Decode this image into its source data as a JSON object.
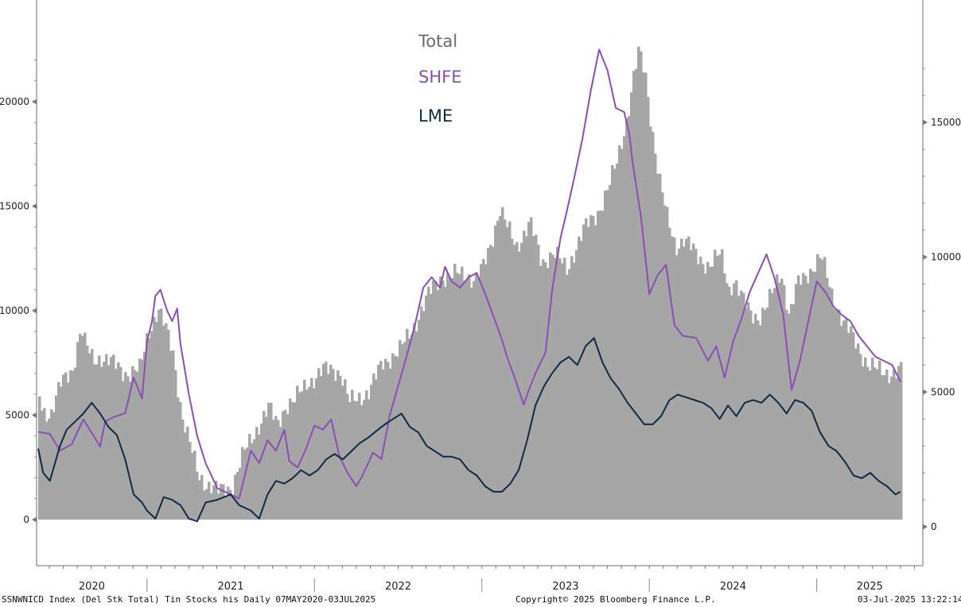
{
  "chart_data": {
    "type": "area",
    "left_axis": {
      "ticks": [
        0,
        5000,
        10000,
        15000,
        20000
      ],
      "ylim": [
        0,
        23000
      ]
    },
    "right_axis": {
      "ticks": [
        0,
        5000,
        10000,
        15000
      ],
      "ylim": [
        0,
        18000
      ]
    },
    "x_categories": [
      "2020",
      "2021",
      "2022",
      "2023",
      "2024",
      "2025"
    ],
    "x_range": [
      2020.35,
      2025.51
    ],
    "legend": [
      "Total",
      "SHFE",
      "LME"
    ],
    "colors": {
      "Total": "#a6a6a6",
      "SHFE": "#8a4fb5",
      "LME": "#0f2a45",
      "legend_total": "#6b6b6b"
    },
    "series": [
      {
        "name": "Total",
        "axis": "right",
        "style": "bars",
        "x": [
          2020.35,
          2020.37,
          2020.42,
          2020.48,
          2020.55,
          2020.6,
          2020.62,
          2020.67,
          2020.72,
          2020.8,
          2020.87,
          2020.95,
          2021.0,
          2021.06,
          2021.1,
          2021.15,
          2021.2,
          2021.25,
          2021.3,
          2021.35,
          2021.42,
          2021.5,
          2021.57,
          2021.62,
          2021.67,
          2021.72,
          2021.77,
          2021.82,
          2021.87,
          2021.95,
          2022.0,
          2022.05,
          2022.1,
          2022.15,
          2022.2,
          2022.25,
          2022.32,
          2022.4,
          2022.5,
          2022.6,
          2022.7,
          2022.75,
          2022.8,
          2022.85,
          2022.9,
          2022.95,
          2023.0,
          2023.05,
          2023.1,
          2023.15,
          2023.2,
          2023.28,
          2023.35,
          2023.42,
          2023.5,
          2023.55,
          2023.6,
          2023.68,
          2023.75,
          2023.8,
          2023.86,
          2023.9,
          2023.93,
          2023.97,
          2024.0,
          2024.05,
          2024.1,
          2024.15,
          2024.2,
          2024.28,
          2024.35,
          2024.42,
          2024.47,
          2024.5,
          2024.55,
          2024.6,
          2024.65,
          2024.7,
          2024.78,
          2024.83,
          2024.88,
          2024.95,
          2025.02,
          2025.08,
          2025.15,
          2025.22,
          2025.3,
          2025.35,
          2025.45,
          2025.5
        ],
        "values": [
          4900,
          4300,
          4200,
          5300,
          5900,
          7400,
          6800,
          6200,
          6300,
          6000,
          5700,
          5800,
          7200,
          8100,
          7400,
          6400,
          4200,
          3000,
          1900,
          1600,
          1300,
          1500,
          2700,
          3300,
          3900,
          4400,
          3800,
          4500,
          4600,
          5400,
          5500,
          5800,
          5900,
          5700,
          4600,
          4800,
          5000,
          6100,
          6500,
          7600,
          8900,
          9300,
          9200,
          9400,
          9400,
          9100,
          9600,
          10600,
          11800,
          11000,
          10400,
          11300,
          9800,
          10200,
          9500,
          10300,
          11000,
          11600,
          12600,
          13500,
          15200,
          16700,
          17600,
          16700,
          15200,
          13000,
          11400,
          10400,
          10700,
          10000,
          9700,
          10100,
          8800,
          9200,
          8400,
          7900,
          7800,
          8200,
          9500,
          7800,
          9000,
          9500,
          10000,
          8700,
          7600,
          6900,
          6000,
          5800,
          5700,
          5800
        ]
      },
      {
        "name": "SHFE",
        "axis": "left",
        "x": [
          2020.35,
          2020.42,
          2020.48,
          2020.55,
          2020.62,
          2020.72,
          2020.75,
          2020.8,
          2020.87,
          2020.92,
          2020.97,
          2021.0,
          2021.03,
          2021.05,
          2021.08,
          2021.12,
          2021.15,
          2021.18,
          2021.2,
          2021.25,
          2021.3,
          2021.35,
          2021.42,
          2021.5,
          2021.55,
          2021.62,
          2021.67,
          2021.72,
          2021.77,
          2021.82,
          2021.85,
          2021.9,
          2021.95,
          2022.0,
          2022.05,
          2022.1,
          2022.15,
          2022.2,
          2022.25,
          2022.28,
          2022.35,
          2022.4,
          2022.45,
          2022.5,
          2022.55,
          2022.6,
          2022.65,
          2022.7,
          2022.75,
          2022.78,
          2022.82,
          2022.87,
          2022.92,
          2022.97,
          2023.02,
          2023.08,
          2023.12,
          2023.15,
          2023.2,
          2023.25,
          2023.28,
          2023.32,
          2023.38,
          2023.42,
          2023.47,
          2023.5,
          2023.55,
          2023.6,
          2023.65,
          2023.7,
          2023.75,
          2023.8,
          2023.85,
          2023.88,
          2023.9,
          2023.95,
          2024.0,
          2024.05,
          2024.1,
          2024.15,
          2024.2,
          2024.28,
          2024.35,
          2024.4,
          2024.45,
          2024.5,
          2024.55,
          2024.6,
          2024.65,
          2024.7,
          2024.75,
          2024.8,
          2024.83,
          2024.85,
          2024.9,
          2024.95,
          2025.0,
          2025.05,
          2025.1,
          2025.15,
          2025.2,
          2025.25,
          2025.3,
          2025.35,
          2025.45,
          2025.5
        ],
        "values": [
          4200,
          4100,
          3300,
          3600,
          4800,
          3500,
          4700,
          4900,
          5100,
          6800,
          5800,
          8500,
          9500,
          10700,
          11000,
          10000,
          9500,
          10100,
          8400,
          6000,
          4000,
          2700,
          1500,
          1200,
          1000,
          3300,
          2700,
          3800,
          3300,
          4300,
          2800,
          2500,
          3400,
          4500,
          4300,
          4800,
          3000,
          2200,
          1600,
          2000,
          3200,
          2900,
          5000,
          6400,
          7800,
          9300,
          11100,
          11600,
          11100,
          12100,
          11400,
          11100,
          11600,
          11800,
          10800,
          9500,
          8600,
          7800,
          6700,
          5500,
          6200,
          7000,
          8000,
          11000,
          13500,
          14500,
          16300,
          18200,
          20500,
          22500,
          21500,
          19700,
          19500,
          18500,
          17100,
          14500,
          10800,
          11700,
          12200,
          9300,
          8800,
          8700,
          7600,
          8300,
          6800,
          8500,
          9600,
          10900,
          11800,
          12700,
          11500,
          9800,
          7600,
          6200,
          7600,
          9500,
          11400,
          10900,
          10200,
          9800,
          9500,
          8800,
          8300,
          7800,
          7400,
          6600
        ]
      },
      {
        "name": "LME",
        "axis": "right",
        "x": [
          2020.35,
          2020.38,
          2020.42,
          2020.48,
          2020.52,
          2020.57,
          2020.62,
          2020.67,
          2020.72,
          2020.77,
          2020.82,
          2020.87,
          2020.92,
          2020.97,
          2021.0,
          2021.05,
          2021.1,
          2021.15,
          2021.2,
          2021.25,
          2021.3,
          2021.35,
          2021.42,
          2021.5,
          2021.55,
          2021.62,
          2021.67,
          2021.72,
          2021.77,
          2021.82,
          2021.87,
          2021.92,
          2021.97,
          2022.02,
          2022.07,
          2022.12,
          2022.17,
          2022.22,
          2022.27,
          2022.32,
          2022.38,
          2022.42,
          2022.47,
          2022.52,
          2022.57,
          2022.62,
          2022.67,
          2022.72,
          2022.77,
          2022.82,
          2022.87,
          2022.92,
          2022.97,
          2023.02,
          2023.07,
          2023.12,
          2023.17,
          2023.22,
          2023.27,
          2023.32,
          2023.37,
          2023.42,
          2023.47,
          2023.52,
          2023.57,
          2023.62,
          2023.67,
          2023.72,
          2023.77,
          2023.82,
          2023.87,
          2023.92,
          2023.97,
          2024.02,
          2024.07,
          2024.12,
          2024.17,
          2024.22,
          2024.27,
          2024.32,
          2024.37,
          2024.42,
          2024.47,
          2024.52,
          2024.57,
          2024.62,
          2024.67,
          2024.72,
          2024.77,
          2024.82,
          2024.87,
          2024.92,
          2024.97,
          2025.02,
          2025.07,
          2025.12,
          2025.17,
          2025.22,
          2025.27,
          2025.32,
          2025.37,
          2025.42,
          2025.47,
          2025.5
        ],
        "values": [
          2900,
          2000,
          1700,
          3000,
          3600,
          3900,
          4200,
          4600,
          4200,
          3700,
          3400,
          2500,
          1200,
          900,
          600,
          300,
          1100,
          1000,
          800,
          300,
          200,
          900,
          1000,
          1200,
          800,
          600,
          300,
          1200,
          1700,
          1600,
          1800,
          2100,
          1900,
          2100,
          2500,
          2700,
          2500,
          2800,
          3100,
          3300,
          3600,
          3800,
          4000,
          4200,
          3700,
          3500,
          3000,
          2800,
          2600,
          2600,
          2500,
          2100,
          1900,
          1500,
          1300,
          1300,
          1600,
          2100,
          3200,
          4500,
          5200,
          5700,
          6100,
          6300,
          6000,
          6700,
          7000,
          6100,
          5500,
          5100,
          4600,
          4200,
          3800,
          3800,
          4100,
          4700,
          4900,
          4800,
          4700,
          4600,
          4400,
          4000,
          4500,
          4100,
          4600,
          4700,
          4600,
          4900,
          4600,
          4200,
          4700,
          4600,
          4300,
          3500,
          3000,
          2800,
          2400,
          1900,
          1800,
          2000,
          1700,
          1500,
          1200,
          1300
        ]
      }
    ]
  },
  "footer": {
    "left": "SSNWNICD Index (Del Stk Total) Tin Stocks his  Daily 07MAY2020-03JUL2025",
    "center": "Copyright© 2025 Bloomberg Finance L.P.",
    "right": "03-Jul-2025 13:22:14"
  }
}
